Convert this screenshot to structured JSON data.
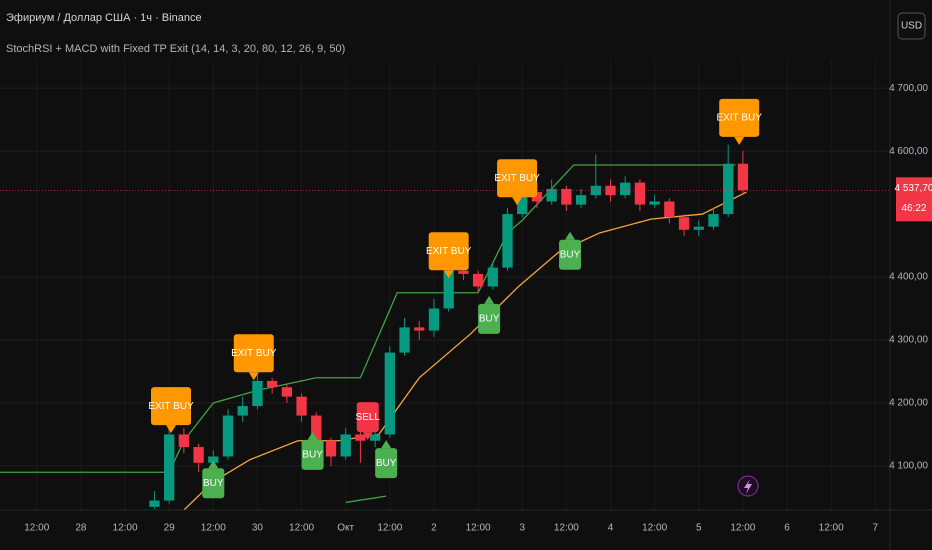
{
  "header": {
    "symbol": "Эфириум / Доллар США · 1ч · Binance",
    "indicator": "StochRSI + MACD with Fixed TP Exit (14, 14, 3, 20, 80, 12, 26, 9, 50)",
    "currency": "USD"
  },
  "chart_data": {
    "type": "candlestick",
    "xlim": [
      -10,
      232
    ],
    "ylim": [
      4030,
      4840
    ],
    "xticks": [
      {
        "value": 0,
        "label": "12:00"
      },
      {
        "value": 12,
        "label": "28"
      },
      {
        "value": 24,
        "label": "12:00"
      },
      {
        "value": 36,
        "label": "29"
      },
      {
        "value": 48,
        "label": "12:00"
      },
      {
        "value": 60,
        "label": "30"
      },
      {
        "value": 72,
        "label": "12:00"
      },
      {
        "value": 84,
        "label": "Окт"
      },
      {
        "value": 96,
        "label": "12:00"
      },
      {
        "value": 108,
        "label": "2"
      },
      {
        "value": 120,
        "label": "12:00"
      },
      {
        "value": 132,
        "label": "3"
      },
      {
        "value": 144,
        "label": "12:00"
      },
      {
        "value": 156,
        "label": "4"
      },
      {
        "value": 168,
        "label": "12:00"
      },
      {
        "value": 180,
        "label": "5"
      },
      {
        "value": 192,
        "label": "12:00"
      },
      {
        "value": 204,
        "label": "6"
      },
      {
        "value": 216,
        "label": "12:00"
      },
      {
        "value": 228,
        "label": "7"
      }
    ],
    "yticks": [
      {
        "value": 4100,
        "label": "4 100,00"
      },
      {
        "value": 4200,
        "label": "4 200,00"
      },
      {
        "value": 4300,
        "label": "4 300,00"
      },
      {
        "value": 4400,
        "label": "4 400,00"
      },
      {
        "value": 4600,
        "label": "4 600,00"
      },
      {
        "value": 4700,
        "label": "4 700,00"
      }
    ],
    "grid": true,
    "up_color": "#089981",
    "down_color": "#f23645",
    "x": [
      32,
      36,
      40,
      44,
      48,
      52,
      56,
      60,
      64,
      68,
      72,
      76,
      80,
      84,
      88,
      92,
      96,
      100,
      104,
      108,
      112,
      116,
      120,
      124,
      128,
      132,
      136,
      140,
      144,
      148,
      152,
      156,
      160,
      164,
      168,
      172,
      176,
      180,
      184,
      188,
      192
    ],
    "open": [
      4035,
      4045,
      4150,
      4130,
      4105,
      4115,
      4180,
      4195,
      4235,
      4225,
      4210,
      4180,
      4140,
      4115,
      4150,
      4140,
      4150,
      4280,
      4320,
      4315,
      4350,
      4410,
      4405,
      4385,
      4415,
      4500,
      4535,
      4520,
      4540,
      4515,
      4530,
      4545,
      4530,
      4550,
      4515,
      4520,
      4495,
      4475,
      4480,
      4500,
      4580
    ],
    "high": [
      4060,
      4165,
      4160,
      4135,
      4125,
      4190,
      4210,
      4245,
      4240,
      4230,
      4215,
      4185,
      4145,
      4160,
      4160,
      4165,
      4290,
      4335,
      4330,
      4365,
      4420,
      4425,
      4410,
      4425,
      4510,
      4545,
      4550,
      4555,
      4545,
      4540,
      4595,
      4555,
      4560,
      4555,
      4530,
      4525,
      4500,
      4490,
      4510,
      4610,
      4600
    ],
    "low": [
      4032,
      4040,
      4120,
      4090,
      4095,
      4110,
      4170,
      4190,
      4215,
      4200,
      4170,
      4125,
      4100,
      4110,
      4105,
      4130,
      4145,
      4275,
      4300,
      4305,
      4345,
      4395,
      4375,
      4380,
      4410,
      4495,
      4510,
      4515,
      4505,
      4510,
      4525,
      4520,
      4525,
      4505,
      4510,
      4485,
      4465,
      4465,
      4475,
      4495,
      4530
    ],
    "close": [
      4045,
      4150,
      4130,
      4105,
      4115,
      4180,
      4195,
      4235,
      4225,
      4210,
      4180,
      4140,
      4115,
      4150,
      4140,
      4150,
      4280,
      4320,
      4315,
      4350,
      4410,
      4405,
      4385,
      4415,
      4500,
      4535,
      4520,
      4540,
      4515,
      4530,
      4545,
      4530,
      4550,
      4515,
      4520,
      4495,
      4475,
      4480,
      4500,
      4580,
      4537.7
    ],
    "lines": [
      {
        "color": "#f7a53b",
        "x": [
          40,
          48,
          58,
          71,
          82,
          93,
          104,
          118,
          131,
          142,
          153,
          167,
          181,
          193
        ],
        "values": [
          4030,
          4075,
          4110,
          4140,
          4140,
          4150,
          4240,
          4310,
          4385,
          4440,
          4470,
          4492,
          4500,
          4535
        ]
      },
      {
        "color": "#43a047",
        "x": [
          -10,
          36,
          40,
          48,
          60,
          76,
          88,
          98,
          120,
          128,
          132,
          146,
          190
        ],
        "values": [
          4090,
          4090,
          4140,
          4200,
          4220,
          4240,
          4240,
          4375,
          4375,
          4470,
          4490,
          4578,
          4578
        ]
      },
      {
        "color": "#43a047",
        "x": [
          84,
          95
        ],
        "values": [
          4042,
          4052
        ]
      }
    ],
    "signals": [
      {
        "text": "EXIT BUY",
        "x": 36.5,
        "price": 4152,
        "side": "above",
        "color": "#ff9800"
      },
      {
        "text": "BUY",
        "x": 48,
        "price": 4109,
        "side": "below",
        "color": "#4caf50"
      },
      {
        "text": "EXIT BUY",
        "x": 59,
        "price": 4236,
        "side": "above",
        "color": "#ff9800"
      },
      {
        "text": "BUY",
        "x": 75,
        "price": 4154,
        "side": "below",
        "color": "#4caf50"
      },
      {
        "text": "SELL",
        "x": 90,
        "price": 4141,
        "side": "above",
        "color": "#f23645"
      },
      {
        "text": "BUY",
        "x": 95,
        "price": 4141,
        "side": "below",
        "color": "#4caf50"
      },
      {
        "text": "EXIT BUY",
        "x": 112,
        "price": 4398,
        "side": "above",
        "color": "#ff9800"
      },
      {
        "text": "BUY",
        "x": 123,
        "price": 4370,
        "side": "below",
        "color": "#4caf50"
      },
      {
        "text": "EXIT BUY",
        "x": 130.6,
        "price": 4514,
        "side": "above",
        "color": "#ff9800"
      },
      {
        "text": "BUY",
        "x": 145,
        "price": 4472,
        "side": "below",
        "color": "#4caf50"
      },
      {
        "text": "EXIT BUY",
        "x": 191,
        "price": 4610,
        "side": "above",
        "color": "#ff9800"
      }
    ],
    "last_price": {
      "value": 4537.7,
      "label": "4 537,70",
      "countdown": "46:22",
      "color": "#f23645"
    }
  }
}
